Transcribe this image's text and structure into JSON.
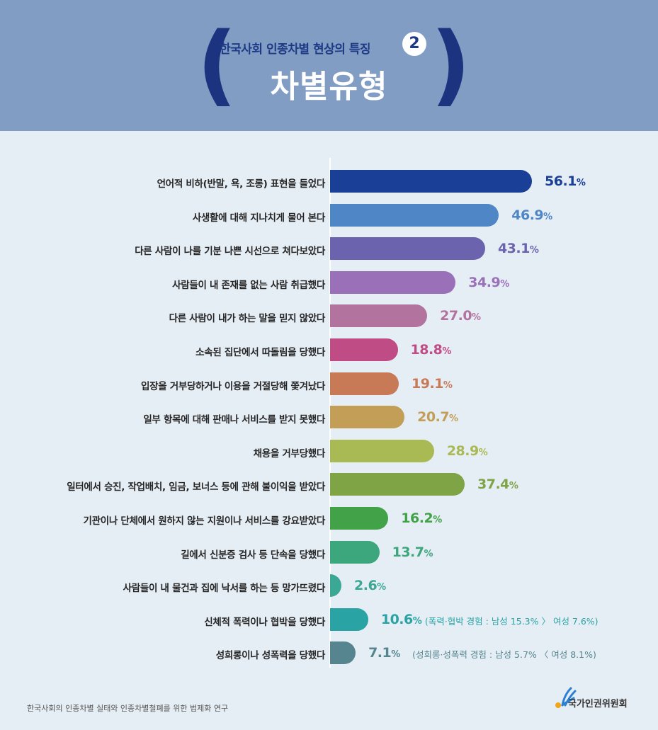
{
  "header": {
    "subtitle": "한국사회 인종차별 현상의 특징",
    "number": "2",
    "title": "차별유형",
    "bg_color": "#829dc4"
  },
  "chart_data": {
    "type": "bar",
    "orientation": "horizontal",
    "categories": [
      "언어적 비하(반말, 욕, 조롱) 표현을 들었다",
      "사생활에 대해 지나치게 물어 본다",
      "다른 사람이 나를 기분 나쁜 시선으로 쳐다보았다",
      "사람들이 내 존재를 없는 사람 취급했다",
      "다른 사람이 내가 하는 말을 믿지 않았다",
      "소속된 집단에서 따돌림을 당했다",
      "입장을 거부당하거나 이용을 거절당해 쫓겨났다",
      "일부 항목에 대해 판매나 서비스를 받지 못했다",
      "채용을 거부당했다",
      "일터에서 승진, 작업배치, 임금, 보너스 등에 관해 불이익을 받았다",
      "기관이나 단체에서 원하지 않는 지원이나 서비스를 강요받았다",
      "길에서 신분증 검사 등 단속을 당했다",
      "사람들이 내 물건과 집에 낙서를 하는 등 망가뜨렸다",
      "신체적 폭력이나 협박을 당했다",
      "성희롱이나 성폭력을 당했다"
    ],
    "values": [
      56.1,
      46.9,
      43.1,
      34.9,
      27.0,
      18.8,
      19.1,
      20.7,
      28.9,
      37.4,
      16.2,
      13.7,
      2.6,
      10.6,
      7.1
    ],
    "value_labels": [
      "56.1",
      "46.9",
      "43.1",
      "34.9",
      "27.0",
      "18.8",
      "19.1",
      "20.7",
      "28.9",
      "37.4",
      "16.2",
      "13.7",
      "2.6",
      "10.6",
      "7.1"
    ],
    "unit": "%",
    "colors": [
      "#1a3f96",
      "#4f86c6",
      "#6b63ad",
      "#9a71b8",
      "#b2739f",
      "#c04c86",
      "#c87a56",
      "#c29e56",
      "#a9b953",
      "#7ea446",
      "#41a247",
      "#3ca77d",
      "#3ba795",
      "#2aa3a4",
      "#56858f"
    ],
    "value_colors": [
      "#1a3f96",
      "#4f86c6",
      "#6b63ad",
      "#9a71b8",
      "#b2739f",
      "#c04c86",
      "#c87a56",
      "#c29e56",
      "#a9b953",
      "#7ea446",
      "#41a247",
      "#3ca77d",
      "#3ba795",
      "#2aa3a4",
      "#56858f"
    ],
    "notes": {
      "13": "(폭력·협박 경험 : 남성 15.3% 〉 여성 7.6%)",
      "14": "(성희롱·성폭력 경험 : 남성 5.7% 〈 여성 8.1%)"
    },
    "xlim": [
      0,
      60
    ]
  },
  "footer": {
    "source": "한국사회의 인종차별 실태와 인종차별철폐를 위한 법제화 연구",
    "logo_text": "국가인권위원회"
  }
}
